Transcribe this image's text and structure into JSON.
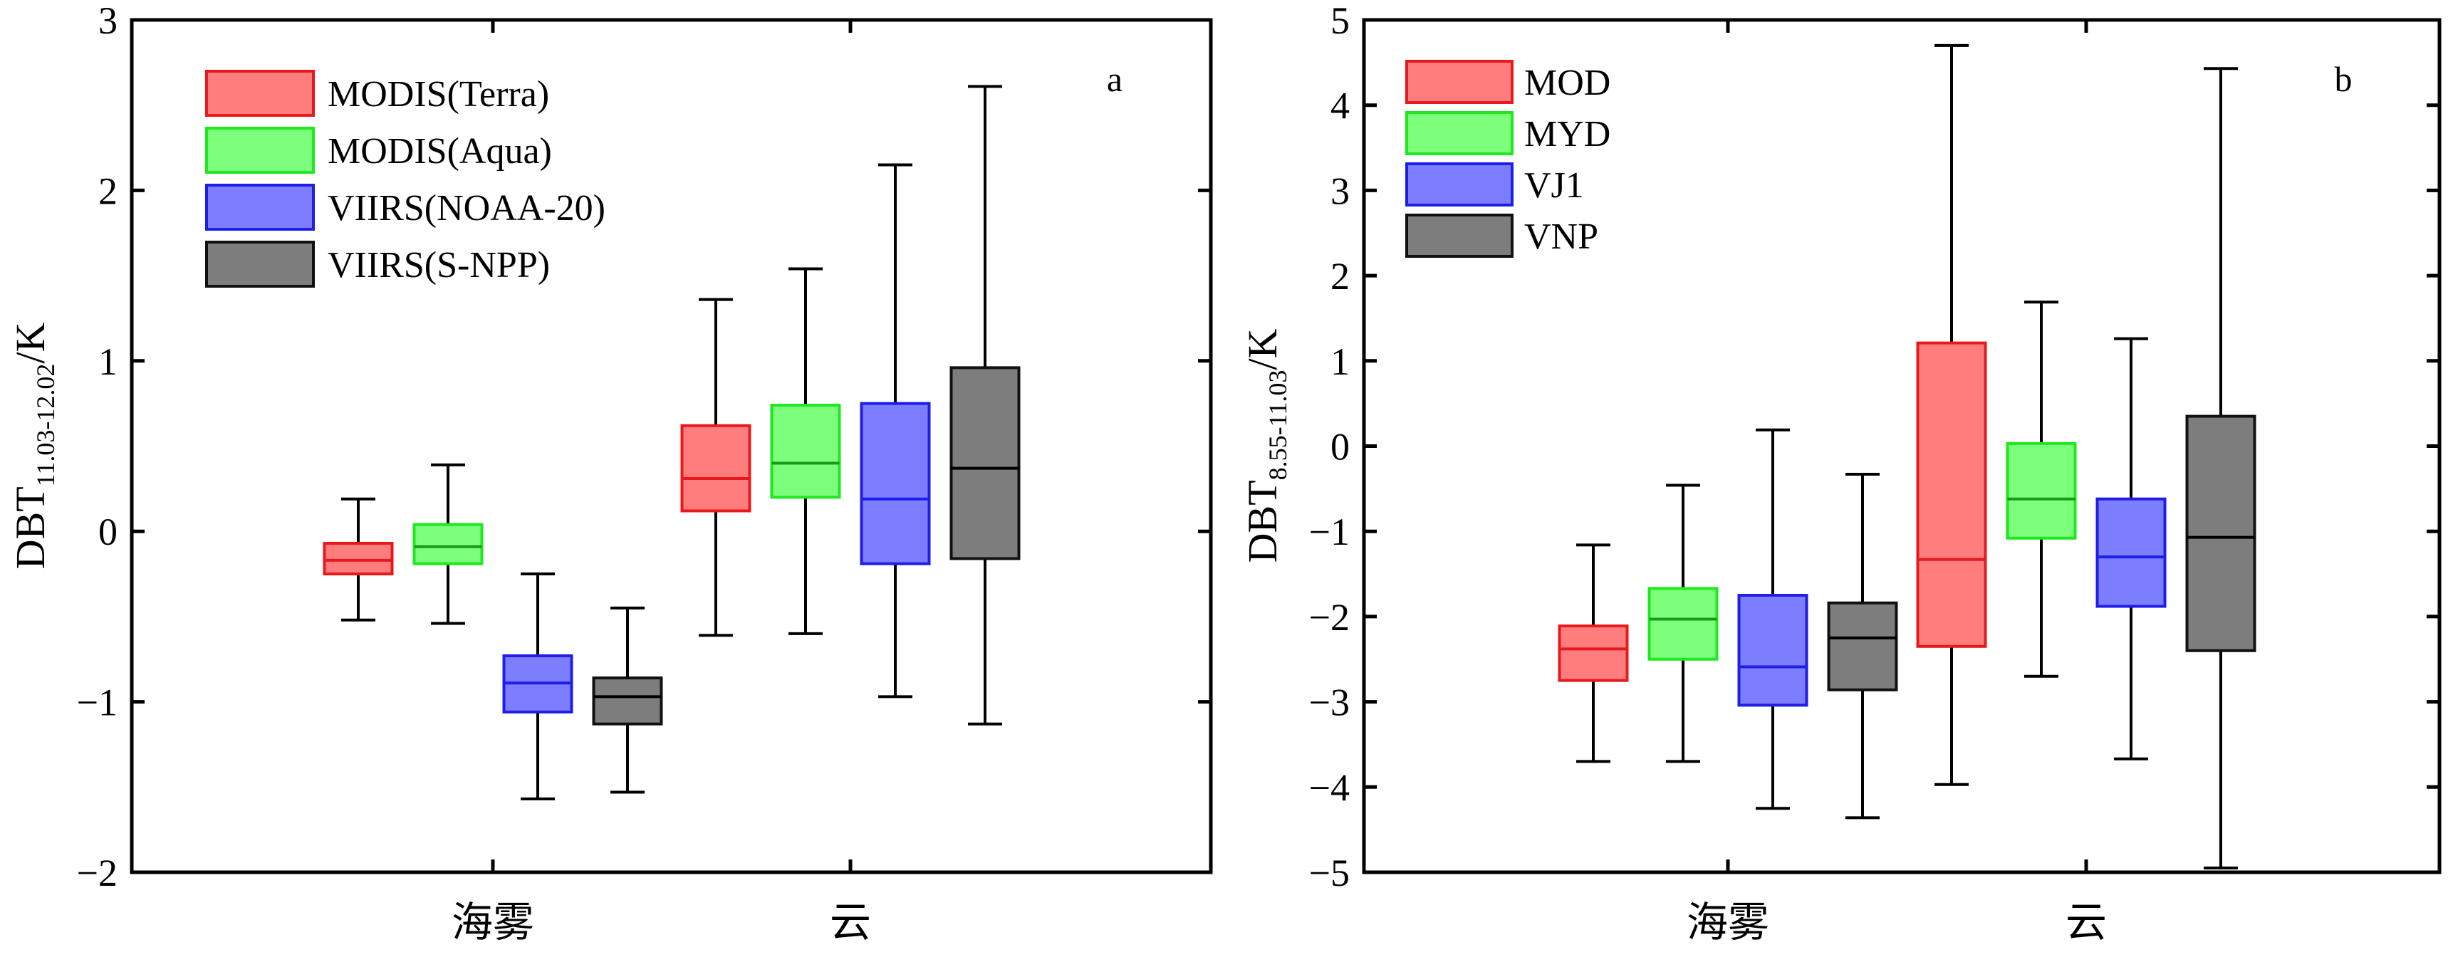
{
  "colors": {
    "MODIS(Terra)": {
      "fill": "#ff7d7d",
      "stroke": "#e8191d",
      "median": "#e8191d"
    },
    "MODIS(Aqua)": {
      "fill": "#7dff7d",
      "stroke": "#1ee81e",
      "median": "#1a9a1a"
    },
    "VIIRS(NOAA-20)": {
      "fill": "#7d7dff",
      "stroke": "#1e1ee8",
      "median": "#1e1ee8"
    },
    "VIIRS(S-NPP)": {
      "fill": "#7d7d7d",
      "stroke": "#111111",
      "median": "#000000"
    }
  },
  "chart_data": [
    {
      "type": "box",
      "panel_label": "a",
      "ylabel_main": "DBT",
      "ylabel_sub": "11.03-12.02",
      "ylabel_unit": "/K",
      "ylim": [
        -2,
        3
      ],
      "yticks": [
        -2,
        -1,
        0,
        1,
        2,
        3
      ],
      "ytick_labels": [
        "−2",
        "−1",
        "0",
        "1",
        "2",
        "3"
      ],
      "categories": [
        "海雾",
        "云"
      ],
      "legend_position": "top-left",
      "series": [
        {
          "name": "MODIS(Terra)",
          "color_key": "MODIS(Terra)",
          "boxes": [
            {
              "min": -0.52,
              "q1": -0.25,
              "median": -0.17,
              "q3": -0.07,
              "max": 0.19
            },
            {
              "min": -0.61,
              "q1": 0.12,
              "median": 0.31,
              "q3": 0.62,
              "max": 1.36
            }
          ]
        },
        {
          "name": "MODIS(Aqua)",
          "color_key": "MODIS(Aqua)",
          "boxes": [
            {
              "min": -0.54,
              "q1": -0.19,
              "median": -0.09,
              "q3": 0.04,
              "max": 0.39
            },
            {
              "min": -0.6,
              "q1": 0.2,
              "median": 0.4,
              "q3": 0.74,
              "max": 1.54
            }
          ]
        },
        {
          "name": "VIIRS(NOAA-20)",
          "color_key": "VIIRS(NOAA-20)",
          "boxes": [
            {
              "min": -1.57,
              "q1": -1.06,
              "median": -0.89,
              "q3": -0.73,
              "max": -0.25
            },
            {
              "min": -0.97,
              "q1": -0.19,
              "median": 0.19,
              "q3": 0.75,
              "max": 2.15
            }
          ]
        },
        {
          "name": "VIIRS(S-NPP)",
          "color_key": "VIIRS(S-NPP)",
          "boxes": [
            {
              "min": -1.53,
              "q1": -1.13,
              "median": -0.97,
              "q3": -0.86,
              "max": -0.45
            },
            {
              "min": -1.13,
              "q1": -0.16,
              "median": 0.37,
              "q3": 0.96,
              "max": 2.61
            }
          ]
        }
      ]
    },
    {
      "type": "box",
      "panel_label": "b",
      "ylabel_main": "DBT",
      "ylabel_sub": "8.55-11.03",
      "ylabel_unit": "/K",
      "ylim": [
        -5,
        5
      ],
      "yticks": [
        -5,
        -4,
        -3,
        -2,
        -1,
        0,
        1,
        2,
        3,
        4,
        5
      ],
      "ytick_labels": [
        "−5",
        "−4",
        "−3",
        "−2",
        "−1",
        "0",
        "1",
        "2",
        "3",
        "4",
        "5"
      ],
      "categories": [
        "海雾",
        "云"
      ],
      "legend_position": "top-left",
      "series": [
        {
          "name": "MOD",
          "color_key": "MODIS(Terra)",
          "boxes": [
            {
              "min": -3.7,
              "q1": -2.75,
              "median": -2.38,
              "q3": -2.11,
              "max": -1.16
            },
            {
              "min": -3.97,
              "q1": -2.35,
              "median": -1.33,
              "q3": 1.21,
              "max": 4.7
            }
          ]
        },
        {
          "name": "MYD",
          "color_key": "MODIS(Aqua)",
          "boxes": [
            {
              "min": -3.7,
              "q1": -2.5,
              "median": -2.03,
              "q3": -1.67,
              "max": -0.46
            },
            {
              "min": -2.7,
              "q1": -1.08,
              "median": -0.62,
              "q3": 0.03,
              "max": 1.69
            }
          ]
        },
        {
          "name": "VJ1",
          "color_key": "VIIRS(NOAA-20)",
          "boxes": [
            {
              "min": -4.25,
              "q1": -3.04,
              "median": -2.59,
              "q3": -1.75,
              "max": 0.19
            },
            {
              "min": -3.67,
              "q1": -1.88,
              "median": -1.3,
              "q3": -0.62,
              "max": 1.26
            }
          ]
        },
        {
          "name": "VNP",
          "color_key": "VIIRS(S-NPP)",
          "boxes": [
            {
              "min": -4.36,
              "q1": -2.86,
              "median": -2.25,
              "q3": -1.84,
              "max": -0.33
            },
            {
              "min": -4.95,
              "q1": -2.4,
              "median": -1.07,
              "q3": 0.35,
              "max": 4.43
            }
          ]
        }
      ]
    }
  ]
}
